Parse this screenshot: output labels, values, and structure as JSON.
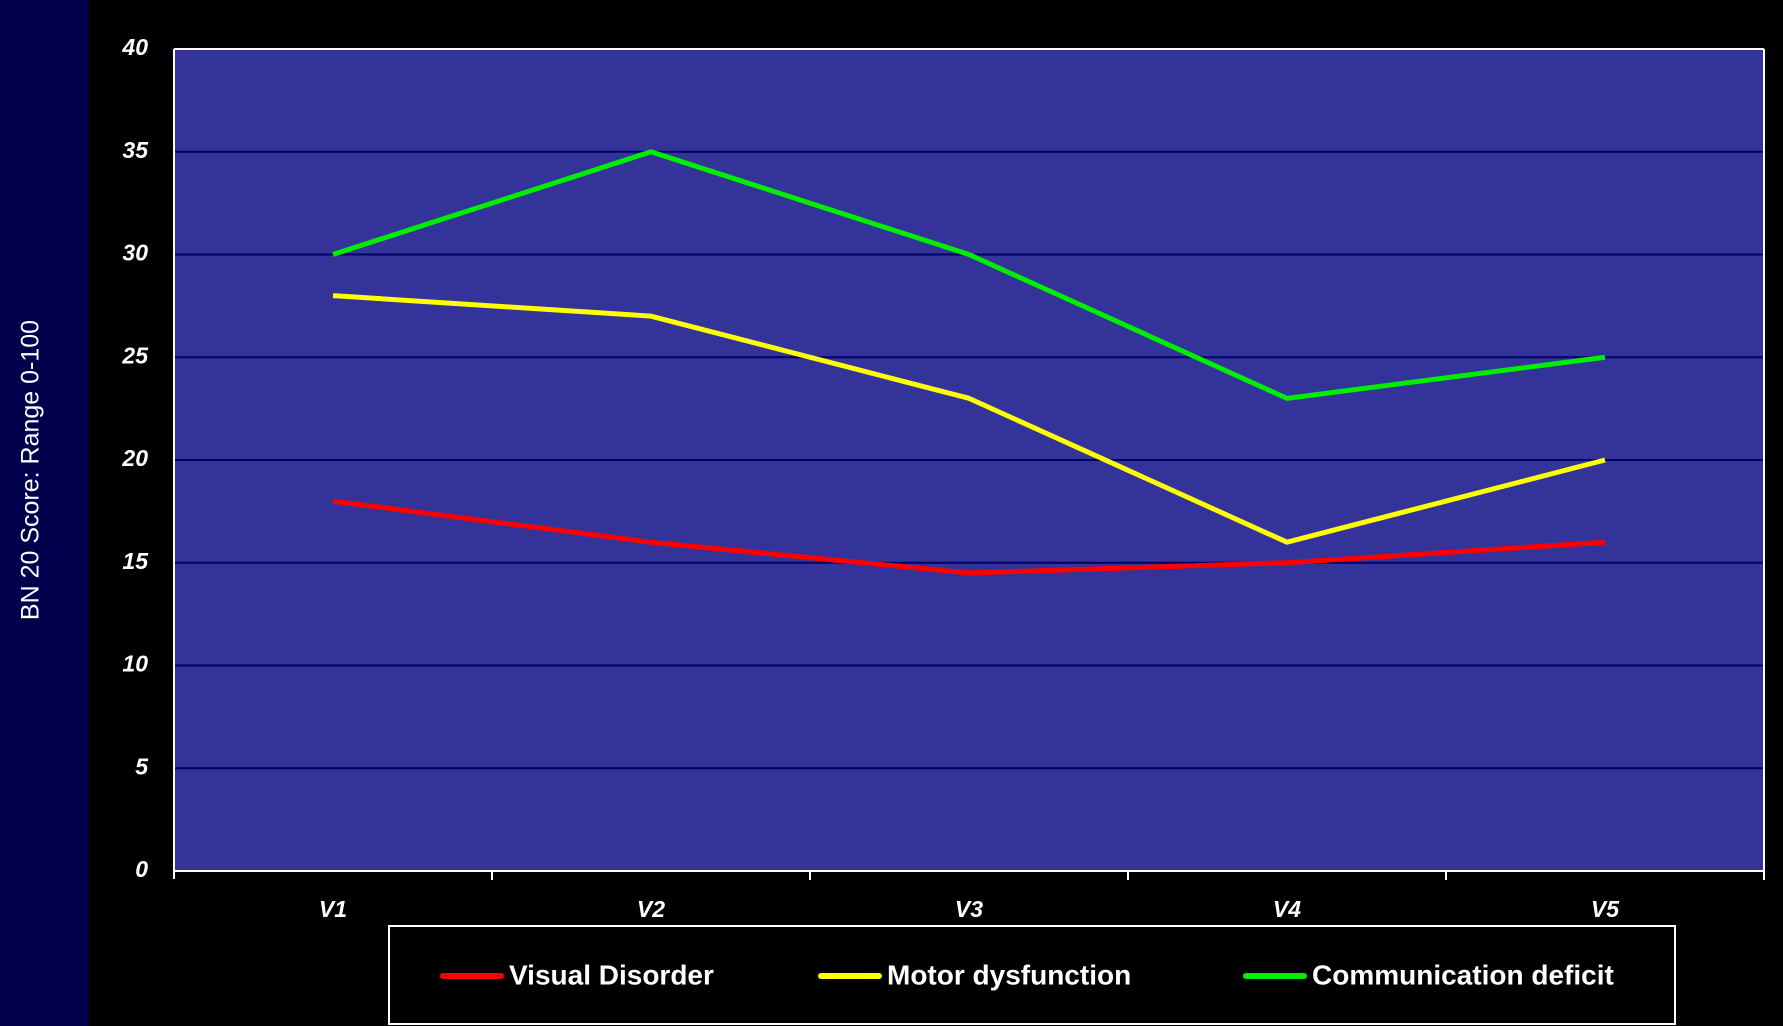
{
  "chart_data": {
    "type": "line",
    "y_label": "BN 20 Score: Range 0-100",
    "categories": [
      "V1",
      "V2",
      "V3",
      "V4",
      "V5"
    ],
    "series": [
      {
        "name": "Visual Disorder",
        "color": "#ff0000",
        "values": [
          18,
          16,
          14.5,
          15,
          16
        ]
      },
      {
        "name": "Motor dysfunction",
        "color": "#ffff00",
        "values": [
          28,
          27,
          23,
          16,
          20
        ]
      },
      {
        "name": "Communication deficit",
        "color": "#00ee00",
        "values": [
          30,
          35,
          30,
          23,
          25
        ]
      }
    ],
    "ylim": [
      0,
      40
    ],
    "yticks": [
      0,
      5,
      10,
      15,
      20,
      25,
      30,
      35,
      40
    ],
    "grid": true,
    "legend": "bottom"
  }
}
